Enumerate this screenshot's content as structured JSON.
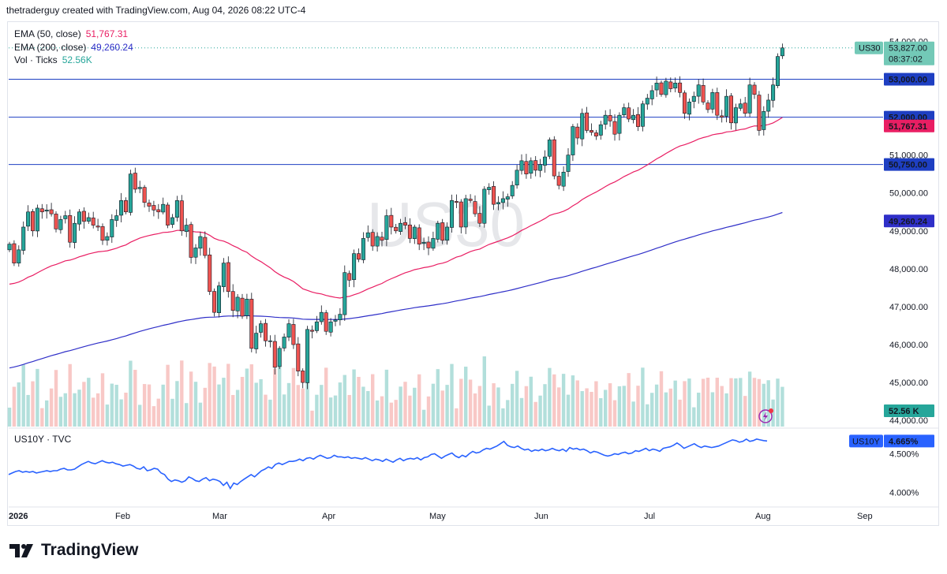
{
  "header": {
    "credit": "thetraderguy created with TradingView.com, Aug 04, 2026 08:22 UTC-4"
  },
  "legend": {
    "ema50": {
      "label": "EMA (50, close)",
      "value": "51,767.31",
      "color": "#e91e63"
    },
    "ema200": {
      "label": "EMA (200, close)",
      "value": "49,260.24",
      "color": "#2f2fc8"
    },
    "vol": {
      "label": "Vol · Ticks",
      "value": "52.56K",
      "color": "#26a69a"
    }
  },
  "lower_pane": {
    "label": "US10Y · TVC"
  },
  "watermark": "US30",
  "brand": {
    "name": "TradingView"
  },
  "colors": {
    "up": "#26a69a",
    "down": "#ef5350",
    "up_vol": "#b2dfdb",
    "down_vol": "#f8c8c6",
    "level": "#1e3fc2",
    "us10y": "#2962ff"
  },
  "chart_data": [
    {
      "type": "candlestick",
      "symbol": "US30",
      "yticks": [
        "54,000.00",
        "51,000.00",
        "50,000.00",
        "49,000.00",
        "48,000.00",
        "47,000.00",
        "46,000.00",
        "45,000.00",
        "44,000.00"
      ],
      "ylim": [
        43900,
        54300
      ],
      "xlabels": [
        "2026",
        "Feb",
        "Mar",
        "Apr",
        "May",
        "Jun",
        "Jul",
        "Aug",
        "Sep"
      ],
      "horizontal_levels": [
        {
          "value": 53000,
          "label": "53,000.00"
        },
        {
          "value": 52000,
          "label": "52,000.00"
        },
        {
          "value": 50750,
          "label": "50,750.00"
        }
      ],
      "last_price": {
        "symbol": "US30",
        "value": 53827,
        "label": "53,827.00",
        "countdown": "08:37:02"
      },
      "ema50_label": {
        "value": 51767.31,
        "label": "51,767.31"
      },
      "ema200_label": {
        "value": 49260.24,
        "label": "49,260.24"
      },
      "volume_label": "52.56 K",
      "closes": [
        48650,
        48150,
        48500,
        49100,
        49500,
        49000,
        49600,
        49500,
        49550,
        49450,
        49050,
        49300,
        49400,
        48700,
        49200,
        49500,
        49250,
        49350,
        49150,
        49100,
        48750,
        48850,
        49300,
        49400,
        49800,
        49500,
        50500,
        50100,
        50150,
        49750,
        49650,
        49550,
        49500,
        49700,
        49150,
        49350,
        49800,
        49000,
        49150,
        48300,
        48550,
        48850,
        48350,
        47400,
        46850,
        47550,
        48150,
        47400,
        46900,
        47250,
        46750,
        47200,
        45900,
        46300,
        46550,
        46100,
        46100,
        45400,
        45900,
        46200,
        46550,
        46000,
        45300,
        45000,
        46400,
        46350,
        46600,
        46850,
        46350,
        46600,
        46650,
        46800,
        47900,
        47700,
        48400,
        48250,
        48800,
        48950,
        48600,
        48850,
        48750,
        49400,
        49100,
        49000,
        49200,
        49150,
        48800,
        49100,
        48650,
        48700,
        48550,
        48800,
        49200,
        48750,
        49100,
        49800,
        49750,
        49100,
        49850,
        49800,
        49450,
        49200,
        50100,
        50150,
        49700,
        49750,
        49850,
        49900,
        50200,
        50600,
        50850,
        50500,
        50850,
        50600,
        50750,
        50950,
        51400,
        50450,
        50200,
        50550,
        51000,
        51750,
        51450,
        52100,
        51650,
        51600,
        51500,
        51800,
        52050,
        51900,
        51550,
        52050,
        52250,
        51950,
        52050,
        51750,
        52350,
        52500,
        52700,
        52900,
        52600,
        52950,
        52750,
        52900,
        52650,
        52100,
        52400,
        52550,
        52850,
        52400,
        52200,
        52650,
        52050,
        52000,
        52550,
        51850,
        52250,
        52350,
        52100,
        52850,
        52600,
        51650,
        52150,
        52450,
        52850,
        53600,
        53827
      ],
      "ema50_start": 47550,
      "ema200_start": 45350
    },
    {
      "type": "line",
      "symbol": "US10Y",
      "yticks": [
        "4.500%",
        "4.000%"
      ],
      "ylim": [
        3.84,
        4.74
      ],
      "last_value": {
        "symbol": "US10Y",
        "value": 4.665,
        "label": "4.665%"
      },
      "values": [
        4.23,
        4.25,
        4.27,
        4.28,
        4.26,
        4.27,
        4.26,
        4.27,
        4.25,
        4.26,
        4.27,
        4.28,
        4.27,
        4.28,
        4.28,
        4.3,
        4.31,
        4.29,
        4.29,
        4.3,
        4.33,
        4.36,
        4.38,
        4.4,
        4.38,
        4.37,
        4.39,
        4.41,
        4.39,
        4.38,
        4.39,
        4.37,
        4.36,
        4.34,
        4.35,
        4.36,
        4.34,
        4.31,
        4.3,
        4.33,
        4.28,
        4.29,
        4.31,
        4.3,
        4.25,
        4.23,
        4.17,
        4.14,
        4.16,
        4.15,
        4.13,
        4.15,
        4.2,
        4.18,
        4.15,
        4.14,
        4.17,
        4.19,
        4.15,
        4.17,
        4.16,
        4.14,
        4.09,
        4.13,
        4.05,
        4.12,
        4.1,
        4.14,
        4.17,
        4.2,
        4.23,
        4.2,
        4.24,
        4.28,
        4.3,
        4.33,
        4.31,
        4.36,
        4.38,
        4.36,
        4.38,
        4.4,
        4.4,
        4.41,
        4.43,
        4.41,
        4.44,
        4.45,
        4.43,
        4.46,
        4.48,
        4.46,
        4.44,
        4.45,
        4.48,
        4.46,
        4.46,
        4.45,
        4.46,
        4.44,
        4.45,
        4.44,
        4.43,
        4.45,
        4.43,
        4.41,
        4.43,
        4.42,
        4.4,
        4.43,
        4.41,
        4.39,
        4.42,
        4.44,
        4.41,
        4.43,
        4.44,
        4.43,
        4.45,
        4.42,
        4.45,
        4.46,
        4.49,
        4.5,
        4.47,
        4.44,
        4.47,
        4.49,
        4.51,
        4.47,
        4.45,
        4.48,
        4.46,
        4.5,
        4.53,
        4.51,
        4.52,
        4.55,
        4.57,
        4.56,
        4.58,
        4.6,
        4.63,
        4.66,
        4.61,
        4.59,
        4.58,
        4.6,
        4.57,
        4.55,
        4.56,
        4.53,
        4.55,
        4.54,
        4.56,
        4.54,
        4.55,
        4.57,
        4.55,
        4.54,
        4.56,
        4.53,
        4.58,
        4.56,
        4.57,
        4.55,
        4.56,
        4.54,
        4.51,
        4.53,
        4.52,
        4.5,
        4.48,
        4.47,
        4.48,
        4.5,
        4.49,
        4.51,
        4.52,
        4.5,
        4.51,
        4.54,
        4.53,
        4.55,
        4.57,
        4.54,
        4.56,
        4.55,
        4.53,
        4.57,
        4.58,
        4.59,
        4.61,
        4.64,
        4.61,
        4.57,
        4.59,
        4.61,
        4.63,
        4.6,
        4.58,
        4.6,
        4.59,
        4.58,
        4.59,
        4.6,
        4.62,
        4.64,
        4.66,
        4.68,
        4.67,
        4.65,
        4.66,
        4.69,
        4.66,
        4.67,
        4.69,
        4.68,
        4.67,
        4.665
      ]
    }
  ]
}
